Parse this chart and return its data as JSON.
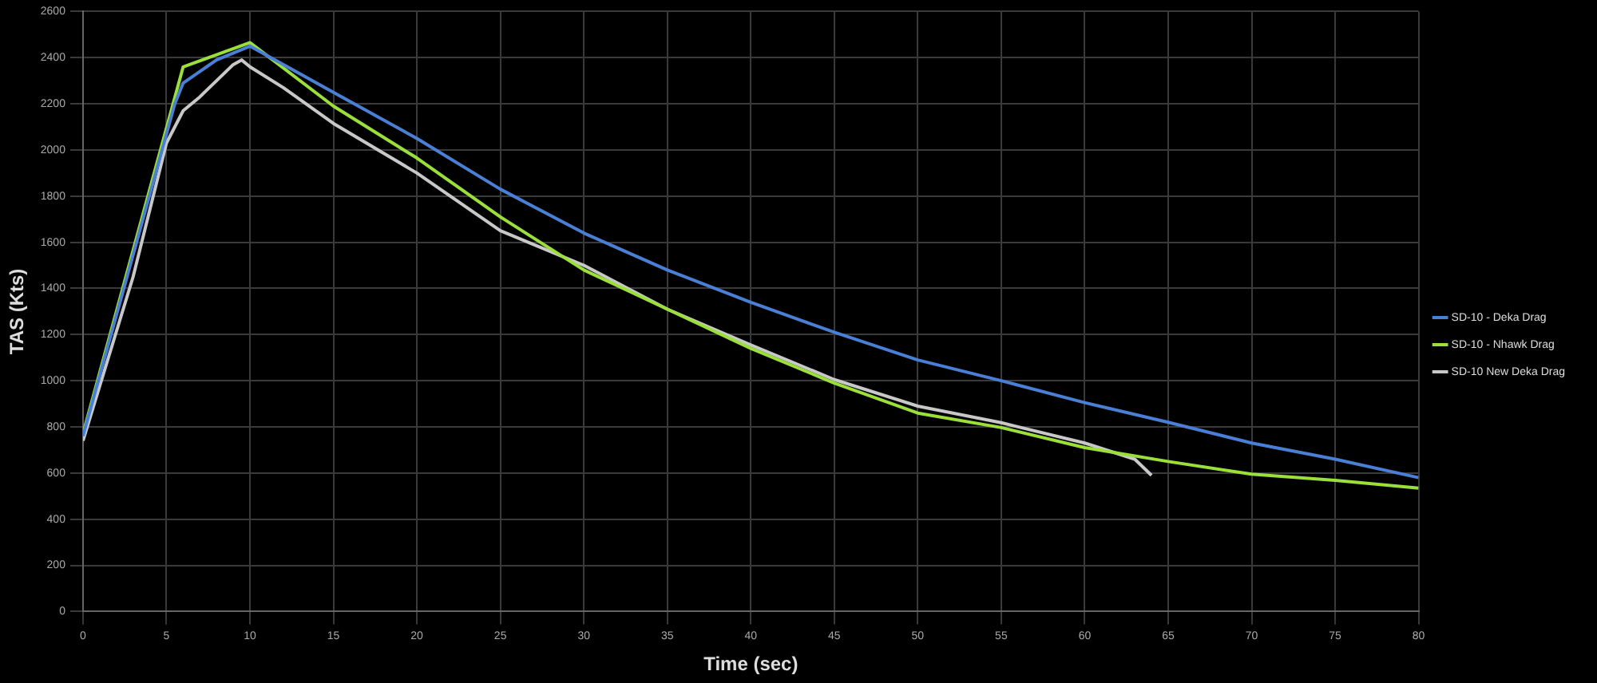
{
  "chart_data": {
    "type": "line",
    "xlabel": "Time (sec)",
    "ylabel": "TAS (Kts)",
    "xlim": [
      0,
      80
    ],
    "xticks": [
      0,
      5,
      10,
      15,
      20,
      25,
      30,
      35,
      40,
      45,
      50,
      55,
      60,
      65,
      70,
      75,
      80
    ],
    "ylim": [
      0,
      2600
    ],
    "yticks": [
      0,
      200,
      400,
      600,
      800,
      1000,
      1200,
      1400,
      1600,
      1800,
      2000,
      2200,
      2400,
      2600
    ],
    "grid": true,
    "legend": "right",
    "marker": "none",
    "line_style": "solid",
    "series": [
      {
        "name": "SD-10 - Deka Drag",
        "color": "#4a7fd6",
        "x": [
          0,
          5.5,
          6,
          8,
          10,
          15,
          20,
          25,
          30,
          35,
          40,
          45,
          50,
          55,
          60,
          65,
          70,
          75,
          80
        ],
        "values": [
          760,
          2200,
          2290,
          2390,
          2450,
          2250,
          2050,
          1830,
          1640,
          1480,
          1340,
          1210,
          1090,
          1000,
          905,
          820,
          730,
          660,
          580
        ]
      },
      {
        "name": "SD-10 - Nhawk Drag",
        "color": "#9be03a",
        "x": [
          0,
          6,
          10,
          15,
          20,
          25,
          30,
          35,
          40,
          45,
          50,
          55,
          60,
          65,
          70,
          75,
          80
        ],
        "values": [
          770,
          2360,
          2465,
          2190,
          1965,
          1710,
          1480,
          1310,
          1140,
          990,
          860,
          797,
          710,
          650,
          595,
          568,
          535
        ]
      },
      {
        "name": "SD-10 New Deka Drag",
        "color": "#c8c8c8",
        "x": [
          0,
          3,
          5,
          6,
          7,
          8,
          9,
          9.5,
          10,
          12,
          15,
          20,
          25,
          30,
          35,
          40,
          45,
          50,
          55,
          60,
          63,
          64
        ],
        "values": [
          740,
          1450,
          2030,
          2170,
          2230,
          2300,
          2370,
          2390,
          2360,
          2270,
          2115,
          1900,
          1650,
          1500,
          1310,
          1155,
          1005,
          890,
          818,
          730,
          660,
          590
        ]
      }
    ]
  }
}
